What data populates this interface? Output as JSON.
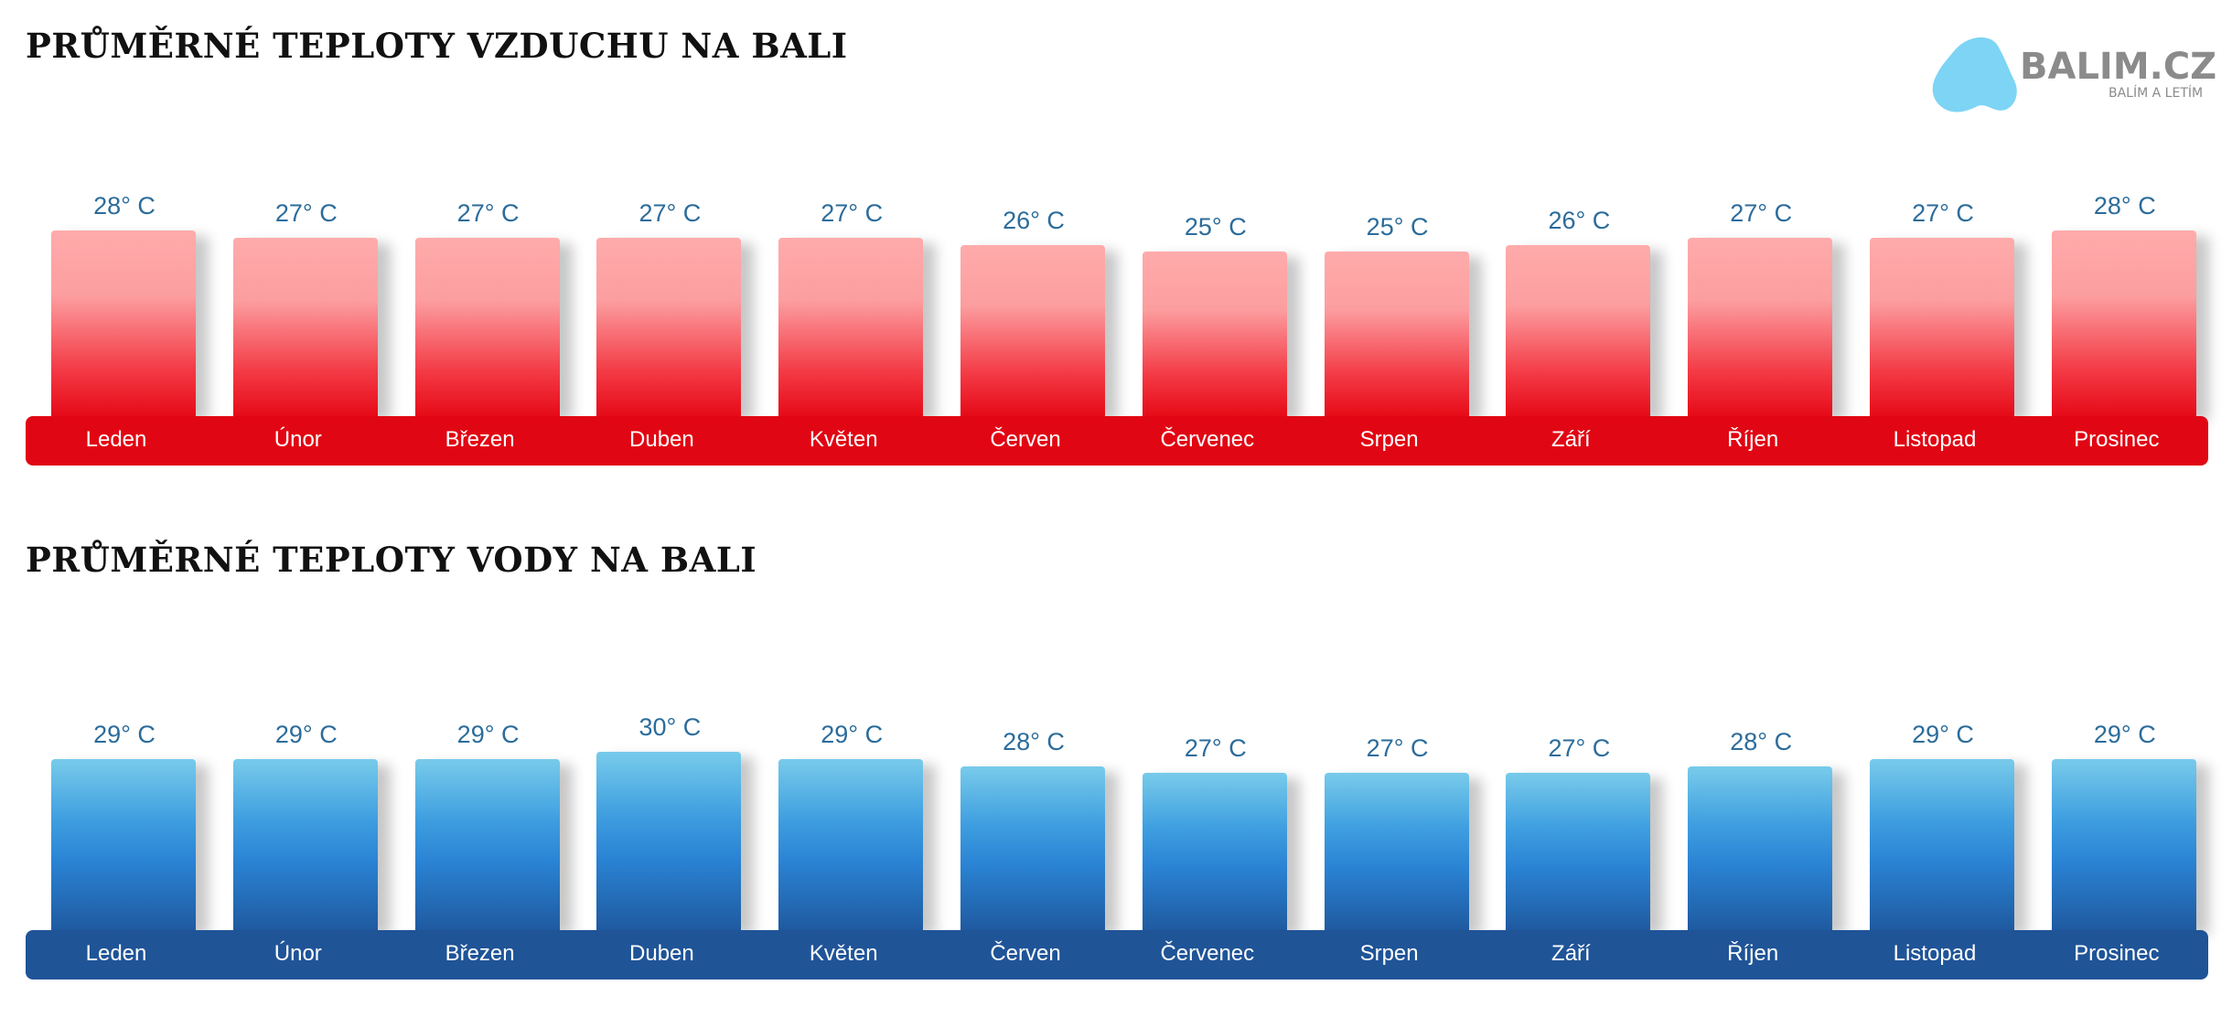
{
  "header": {
    "air_title": "PRŮMĚRNÉ TEPLOTY VZDUCHU NA BALI",
    "water_title": "PRŮMĚRNÉ TEPLOTY VODY NA BALI"
  },
  "logo": {
    "name": "BALIM.CZ",
    "tagline": "BALÍM A LETÍM",
    "color": "#7dd4f5"
  },
  "colors": {
    "air_band": "#e10613",
    "air_bar_top": "#ffabab",
    "water_band": "#1f5497",
    "water_bar_top": "#78cbea",
    "value_label": "#2b6c9b"
  },
  "chart_data": [
    {
      "type": "bar",
      "title": "PRŮMĚRNÉ TEPLOTY VZDUCHU NA BALI",
      "categories": [
        "Leden",
        "Únor",
        "Březen",
        "Duben",
        "Květen",
        "Červen",
        "Červenec",
        "Srpen",
        "Září",
        "Říjen",
        "Listopad",
        "Prosinec"
      ],
      "values": [
        28,
        27,
        27,
        27,
        27,
        26,
        25,
        25,
        26,
        27,
        27,
        28
      ],
      "value_labels": [
        "28° C",
        "27° C",
        "27° C",
        "27° C",
        "27° C",
        "26° C",
        "25° C",
        "25° C",
        "26° C",
        "27° C",
        "27° C",
        "28° C"
      ],
      "unit": "° C",
      "xlabel": "",
      "ylabel": "",
      "grid": false,
      "legend": "none"
    },
    {
      "type": "bar",
      "title": "PRŮMĚRNÉ TEPLOTY VODY NA BALI",
      "categories": [
        "Leden",
        "Únor",
        "Březen",
        "Duben",
        "Květen",
        "Červen",
        "Červenec",
        "Srpen",
        "Září",
        "Říjen",
        "Listopad",
        "Prosinec"
      ],
      "values": [
        29,
        29,
        29,
        30,
        29,
        28,
        27,
        27,
        27,
        28,
        29,
        29
      ],
      "value_labels": [
        "29° C",
        "29° C",
        "29° C",
        "30° C",
        "29° C",
        "28° C",
        "27° C",
        "27° C",
        "27° C",
        "28° C",
        "29° C",
        "29° C"
      ],
      "unit": "° C",
      "xlabel": "",
      "ylabel": "",
      "grid": false,
      "legend": "none"
    }
  ]
}
